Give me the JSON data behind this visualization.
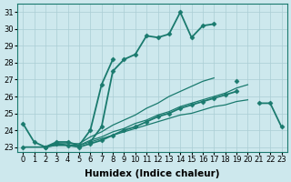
{
  "xlabel": "Humidex (Indice chaleur)",
  "x_values": [
    0,
    1,
    2,
    3,
    4,
    5,
    6,
    7,
    8,
    9,
    10,
    11,
    12,
    13,
    14,
    15,
    16,
    17,
    18,
    19,
    20,
    21,
    22,
    23
  ],
  "lines": [
    {
      "y": [
        null,
        null,
        null,
        null,
        null,
        null,
        23.3,
        24.2,
        27.5,
        28.2,
        28.5,
        29.6,
        29.5,
        29.7,
        31.0,
        29.5,
        30.2,
        30.3,
        null,
        null,
        null,
        null,
        null,
        null
      ],
      "color": "#1a7a6e",
      "linewidth": 1.3,
      "marker": "D",
      "markersize": 2.5
    },
    {
      "y": [
        24.4,
        23.3,
        23.0,
        23.3,
        23.3,
        23.1,
        24.0,
        26.7,
        28.2,
        null,
        null,
        null,
        null,
        null,
        null,
        null,
        null,
        null,
        null,
        26.9,
        null,
        null,
        null,
        null
      ],
      "color": "#1a7a6e",
      "linewidth": 1.3,
      "marker": "D",
      "markersize": 2.5
    },
    {
      "y": [
        23.0,
        null,
        23.0,
        23.2,
        23.1,
        23.0,
        23.2,
        23.4,
        23.7,
        24.0,
        24.2,
        24.5,
        24.8,
        25.0,
        25.3,
        25.5,
        25.7,
        25.9,
        26.1,
        26.3,
        null,
        25.6,
        25.6,
        24.2
      ],
      "color": "#1a7a6e",
      "linewidth": 1.3,
      "marker": "D",
      "markersize": 2.5
    },
    {
      "y": [
        23.0,
        23.0,
        23.0,
        23.1,
        23.1,
        23.1,
        23.3,
        23.5,
        23.7,
        23.9,
        24.1,
        24.3,
        24.5,
        24.7,
        24.9,
        25.0,
        25.2,
        25.4,
        25.5,
        25.7,
        25.8,
        null,
        null,
        null
      ],
      "color": "#1a7a6e",
      "linewidth": 0.9,
      "marker": null,
      "markersize": 0
    },
    {
      "y": [
        23.0,
        23.0,
        23.0,
        23.1,
        23.1,
        23.1,
        23.4,
        23.6,
        23.9,
        24.1,
        24.4,
        24.6,
        24.9,
        25.1,
        25.4,
        25.6,
        25.8,
        26.0,
        26.2,
        26.5,
        26.7,
        null,
        null,
        null
      ],
      "color": "#1a7a6e",
      "linewidth": 0.9,
      "marker": null,
      "markersize": 0
    },
    {
      "y": [
        23.0,
        23.0,
        23.0,
        23.2,
        23.2,
        23.2,
        23.6,
        23.9,
        24.3,
        24.6,
        24.9,
        25.3,
        25.6,
        26.0,
        26.3,
        26.6,
        26.9,
        27.1,
        null,
        null,
        null,
        null,
        null,
        null
      ],
      "color": "#1a7a6e",
      "linewidth": 0.9,
      "marker": null,
      "markersize": 0
    }
  ],
  "ylim": [
    22.7,
    31.5
  ],
  "xlim": [
    -0.5,
    23.5
  ],
  "yticks": [
    23,
    24,
    25,
    26,
    27,
    28,
    29,
    30,
    31
  ],
  "xticks": [
    0,
    1,
    2,
    3,
    4,
    5,
    6,
    7,
    8,
    9,
    10,
    11,
    12,
    13,
    14,
    15,
    16,
    17,
    18,
    19,
    20,
    21,
    22,
    23
  ],
  "bg_color": "#cde8ed",
  "grid_color": "#aacdd4",
  "line_color": "#1a7a6e",
  "tick_fontsize": 6,
  "label_fontsize": 7.5
}
